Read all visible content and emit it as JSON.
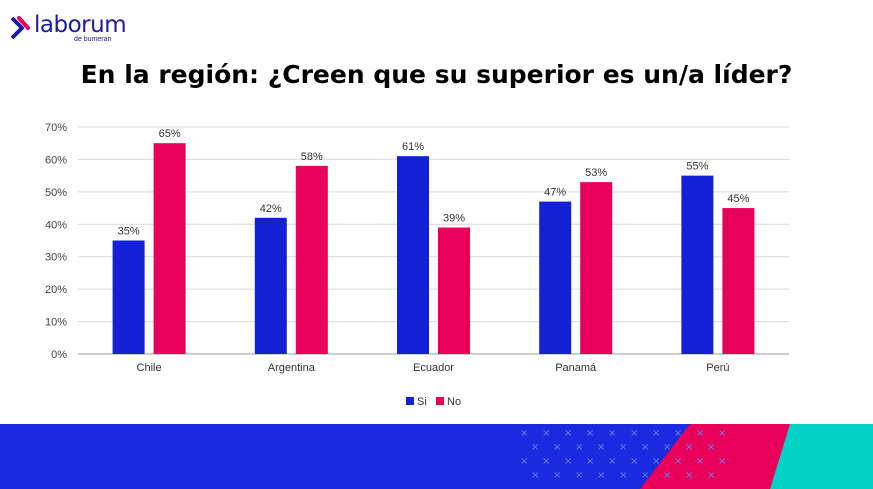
{
  "logo": {
    "brand": "laborum",
    "sub": "de bumeran",
    "colors": {
      "brand": "#1a1aa8",
      "accent": "#e8005a"
    }
  },
  "title": "En la región: ¿Creen que su superior es un/a líder?",
  "chart_data": {
    "type": "bar",
    "title": "",
    "xlabel": "",
    "ylabel": "",
    "categories": [
      "Chile",
      "Argentina",
      "Ecuador",
      "Panamá",
      "Perú"
    ],
    "series": [
      {
        "name": "Si",
        "color": "#1320d6",
        "values": [
          35,
          42,
          61,
          47,
          55
        ],
        "labels": [
          "35%",
          "42%",
          "61%",
          "47%",
          "55%"
        ]
      },
      {
        "name": "No",
        "color": "#e8005a",
        "values": [
          65,
          58,
          39,
          53,
          45
        ],
        "labels": [
          "65%",
          "58%",
          "39%",
          "53%",
          "45%"
        ]
      }
    ],
    "ylim": [
      0,
      70
    ],
    "yticks": [
      0,
      10,
      20,
      30,
      40,
      50,
      60,
      70
    ],
    "ytick_labels": [
      "0%",
      "10%",
      "20%",
      "30%",
      "40%",
      "50%",
      "60%",
      "70%"
    ],
    "grid": true,
    "legend_position": "bottom-center"
  },
  "footer": {
    "colors": {
      "band": "#1a2ae0",
      "pink": "#e8005a",
      "teal": "#00d2c8",
      "dot": "#6a80ff"
    }
  }
}
